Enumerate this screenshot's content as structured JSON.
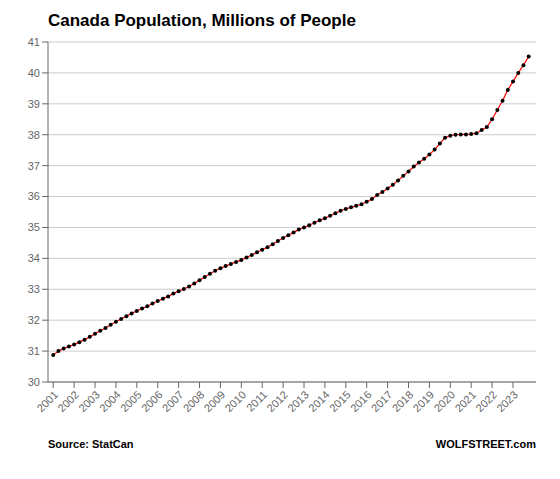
{
  "chart_data": {
    "type": "line",
    "title": "Canada Population, Millions of People",
    "annotations": [
      "Source: StatCan",
      "WOLFSTREET.com"
    ],
    "color": "#FF0000",
    "marker": "o",
    "grid": true,
    "xlim": [
      2000.75,
      2024.1
    ],
    "xticks": [
      2001,
      2002,
      2003,
      2004,
      2005,
      2006,
      2007,
      2008,
      2009,
      2010,
      2011,
      2012,
      2013,
      2014,
      2015,
      2016,
      2017,
      2018,
      2019,
      2020,
      2021,
      2022,
      2023
    ],
    "ylim": [
      30,
      41
    ],
    "yticks": [
      30,
      31,
      32,
      33,
      34,
      35,
      36,
      37,
      38,
      39,
      40,
      41
    ],
    "x": [
      2001.0,
      2001.25,
      2001.5,
      2001.75,
      2002.0,
      2002.25,
      2002.5,
      2002.75,
      2003.0,
      2003.25,
      2003.5,
      2003.75,
      2004.0,
      2004.25,
      2004.5,
      2004.75,
      2005.0,
      2005.25,
      2005.5,
      2005.75,
      2006.0,
      2006.25,
      2006.5,
      2006.75,
      2007.0,
      2007.25,
      2007.5,
      2007.75,
      2008.0,
      2008.25,
      2008.5,
      2008.75,
      2009.0,
      2009.25,
      2009.5,
      2009.75,
      2010.0,
      2010.25,
      2010.5,
      2010.75,
      2011.0,
      2011.25,
      2011.5,
      2011.75,
      2012.0,
      2012.25,
      2012.5,
      2012.75,
      2013.0,
      2013.25,
      2013.5,
      2013.75,
      2014.0,
      2014.25,
      2014.5,
      2014.75,
      2015.0,
      2015.25,
      2015.5,
      2015.75,
      2016.0,
      2016.25,
      2016.5,
      2016.75,
      2017.0,
      2017.25,
      2017.5,
      2017.75,
      2018.0,
      2018.25,
      2018.5,
      2018.75,
      2019.0,
      2019.25,
      2019.5,
      2019.75,
      2020.0,
      2020.25,
      2020.5,
      2020.75,
      2021.0,
      2021.25,
      2021.5,
      2021.75,
      2022.0,
      2022.25,
      2022.5,
      2022.75,
      2023.0,
      2023.25,
      2023.5,
      2023.75
    ],
    "values": [
      30.87,
      31.0,
      31.08,
      31.15,
      31.21,
      31.29,
      31.37,
      31.46,
      31.56,
      31.66,
      31.75,
      31.85,
      31.95,
      32.04,
      32.13,
      32.22,
      32.3,
      32.38,
      32.45,
      32.54,
      32.62,
      32.69,
      32.77,
      32.86,
      32.94,
      33.01,
      33.09,
      33.19,
      33.29,
      33.4,
      33.5,
      33.6,
      33.68,
      33.75,
      33.82,
      33.88,
      33.95,
      34.03,
      34.11,
      34.2,
      34.28,
      34.36,
      34.46,
      34.56,
      34.66,
      34.75,
      34.84,
      34.93,
      35.0,
      35.07,
      35.15,
      35.23,
      35.3,
      35.38,
      35.46,
      35.54,
      35.6,
      35.65,
      35.7,
      35.75,
      35.83,
      35.92,
      36.05,
      36.15,
      36.26,
      36.38,
      36.52,
      36.67,
      36.81,
      36.97,
      37.1,
      37.22,
      37.36,
      37.52,
      37.72,
      37.9,
      37.97,
      38.0,
      38.01,
      38.01,
      38.02,
      38.05,
      38.15,
      38.25,
      38.5,
      38.8,
      39.1,
      39.45,
      39.72,
      40.0,
      40.25,
      40.53
    ]
  }
}
